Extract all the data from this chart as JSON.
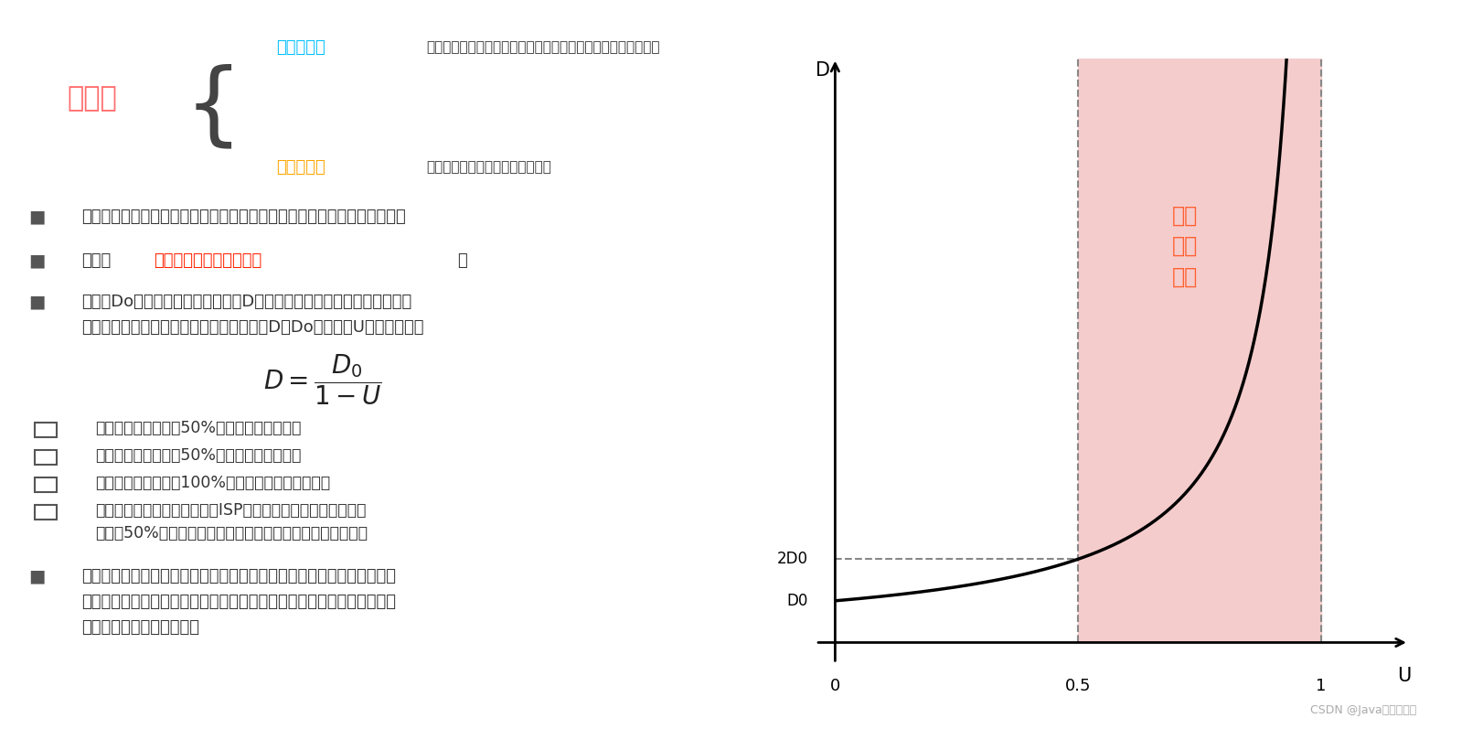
{
  "bg_color": "#ffffff",
  "title_text": "利用率",
  "title_color": "#FF6B6B",
  "channel_util_label": "信道利用率",
  "channel_util_color": "#00BFFF",
  "channel_util_desc": "用来表示某信道有百分之几的时间是被利用的（有数据通过）。",
  "network_util_label": "网络利用率",
  "network_util_color": "#FFA500",
  "network_util_desc": "全网络的信道利用率的加权平均。",
  "bullet_color": "#555555",
  "bullet1": "根据排队论，当某信道的利用率增大时，该信道引起的时延也会迅速增加；",
  "bullet2_prefix": "因此，",
  "bullet2_highlight": "信道利用率并非越高越好",
  "bullet2_highlight_color": "#FF2200",
  "bullet2_suffix": "；",
  "bullet3_line1": "如果令Do表示网络空闲时的时延，D表示网络当前的时延，那么在适当的",
  "bullet3_line2": "假定条件下，可以用下面的简单公式来表示D、Do和利用率U之间的关系：",
  "checkbox_items": [
    "当网络的利用率达到50%时，时延就要加倍；",
    "当网络的利用率超过50%时，时延急剧增大；",
    "当网络的利用率接近100%时，时延就趋于无穷大；",
    "因此，一些拥有较大主干网的ISP通常会控制它们的信道利用率"
  ],
  "checkbox_item4_line2": "不超过50%。如果超过了，就要准备扩容，增大线路的带宽。",
  "bullet5_line1": "也不能使信道利用率太低，这会使宝贵的通信资源被白白浪费。应该使用",
  "bullet5_line2": "一些机制，可以根据情况动态调整输入到网络中的通信量，使网络利用率",
  "bullet5_line3": "保持在一个合理的范围内。",
  "graph_shade_color": "#F5CCCC",
  "graph_line_color": "#000000",
  "graph_dashed_color": "#888888",
  "graph_label_D": "D",
  "graph_label_U": "U",
  "graph_label_0": "0",
  "graph_label_05": "0.5",
  "graph_label_1": "1",
  "graph_label_D0": "D0",
  "graph_label_2D0": "2D0",
  "graph_annotation": "时延\n急剧\n增大",
  "graph_annotation_color": "#FF6030",
  "watermark": "CSDN @Java技术一点通",
  "watermark_color": "#aaaaaa"
}
